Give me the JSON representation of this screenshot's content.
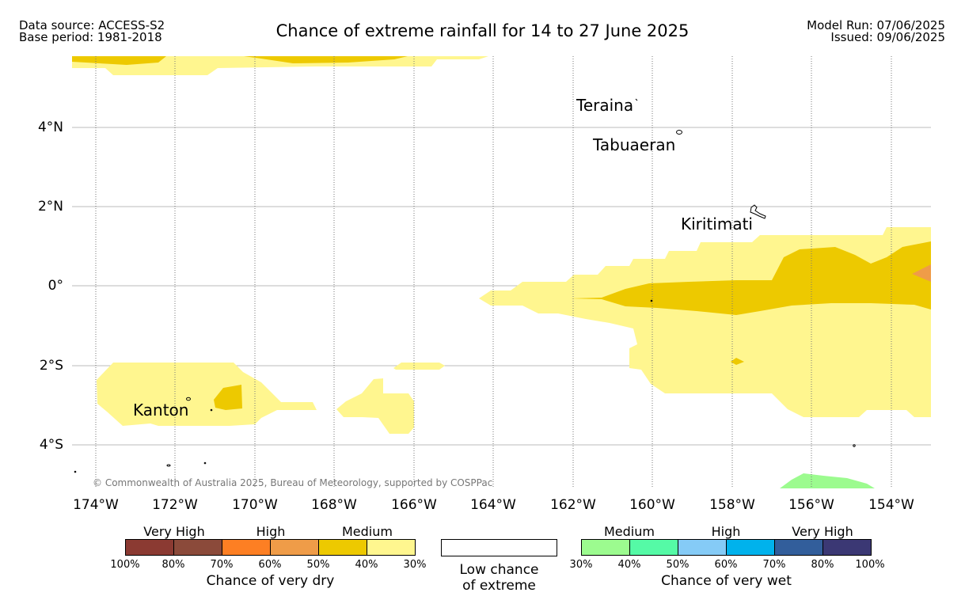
{
  "header": {
    "data_source": "Data source: ACCESS-S2",
    "base_period": "Base period: 1981-2018",
    "title": "Chance of extreme rainfall for 14 to 27 June 2025",
    "model_run": "Model Run: 07/06/2025",
    "issued": "Issued: 09/06/2025"
  },
  "map": {
    "lat_labels": [
      "4°N",
      "2°N",
      "0°",
      "2°S",
      "4°S"
    ],
    "lon_labels": [
      "174°W",
      "172°W",
      "170°W",
      "168°W",
      "166°W",
      "164°W",
      "162°W",
      "160°W",
      "158°W",
      "156°W",
      "154°W"
    ],
    "places": [
      "Teraina",
      "Tabuaeran",
      "Kiritimati",
      "Kanton"
    ],
    "copyright": "© Commonwealth of Australia 2025, Bureau of Meteorology, supported by COSPPac",
    "colors": {
      "dry_medium_light": "#fff68f",
      "dry_medium_dark": "#edc900",
      "dry_high_light": "#ef9c48",
      "wet_medium_light": "#9cfb8f"
    }
  },
  "legend": {
    "dry": {
      "categories": [
        "Very High",
        "High",
        "Medium"
      ],
      "colors": [
        "#8b3a32",
        "#8b4a3a",
        "#fd7f23",
        "#ef9c48",
        "#edc900",
        "#fff68f"
      ],
      "ticks": [
        "100%",
        "80%",
        "70%",
        "60%",
        "50%",
        "40%",
        "30%"
      ],
      "title": "Chance of very dry"
    },
    "low": {
      "line1": "Low chance",
      "line2": "of extreme"
    },
    "wet": {
      "categories": [
        "Medium",
        "High",
        "Very High"
      ],
      "colors": [
        "#9cfb8f",
        "#55faa6",
        "#85cbf6",
        "#00b2ec",
        "#325e9b",
        "#3b3874"
      ],
      "ticks": [
        "30%",
        "40%",
        "50%",
        "60%",
        "70%",
        "80%",
        "100%"
      ],
      "title": "Chance of very wet"
    }
  }
}
